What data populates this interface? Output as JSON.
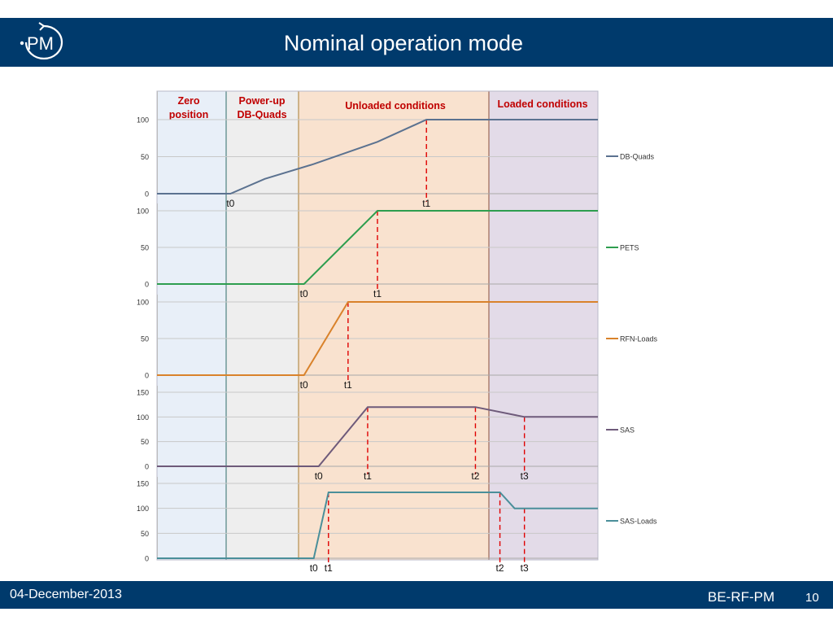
{
  "slide": {
    "title": "Nominal operation mode",
    "date": "04-December-2013",
    "group": "BE-RF-PM",
    "page": "10",
    "logo_text": "PM",
    "header_color": "#003a6c"
  },
  "chart_data": {
    "type": "line",
    "title": "",
    "phases": [
      {
        "name": "zero",
        "label": [
          "Zero",
          "position"
        ],
        "color": "#e8eff8"
      },
      {
        "name": "powerup",
        "label": [
          "Power-up",
          "DB-Quads"
        ],
        "color": "#eeeeee"
      },
      {
        "name": "unloaded",
        "label": [
          "Unloaded conditions"
        ],
        "color": "#f9e2cf"
      },
      {
        "name": "loaded",
        "label": [
          "Loaded conditions"
        ],
        "color": "#e3dbe8"
      }
    ],
    "phase_label_color": "#c00000",
    "marker_color": "#e00000",
    "charts": [
      {
        "legend": "DB-Quads",
        "color": "#5b7290",
        "ylim": [
          0,
          100
        ],
        "yticks": [
          "0",
          "50",
          "100"
        ],
        "points": [
          [
            0,
            0
          ],
          [
            1.5,
            0
          ],
          [
            2.2,
            20
          ],
          [
            3.2,
            40
          ],
          [
            4.5,
            70
          ],
          [
            5.5,
            100
          ],
          [
            9.0,
            100
          ]
        ],
        "markers": [
          {
            "label": "t0",
            "x": 1.5,
            "dashed": false
          },
          {
            "label": "t1",
            "x": 5.5,
            "dashed": true
          }
        ]
      },
      {
        "legend": "PETS",
        "color": "#2e9e4f",
        "ylim": [
          0,
          100
        ],
        "yticks": [
          "0",
          "50",
          "100"
        ],
        "points": [
          [
            0,
            0
          ],
          [
            3.0,
            0
          ],
          [
            4.5,
            100
          ],
          [
            9.0,
            100
          ]
        ],
        "markers": [
          {
            "label": "t0",
            "x": 3.0,
            "dashed": false
          },
          {
            "label": "t1",
            "x": 4.5,
            "dashed": true
          }
        ]
      },
      {
        "legend": "RFN-Loads",
        "color": "#d9822b",
        "ylim": [
          0,
          100
        ],
        "yticks": [
          "0",
          "50",
          "100"
        ],
        "points": [
          [
            0,
            0
          ],
          [
            3.0,
            0
          ],
          [
            3.9,
            100
          ],
          [
            9.0,
            100
          ]
        ],
        "markers": [
          {
            "label": "t0",
            "x": 3.0,
            "dashed": false
          },
          {
            "label": "t1",
            "x": 3.9,
            "dashed": true
          }
        ]
      },
      {
        "legend": "SAS",
        "color": "#6e5a7a",
        "ylim": [
          0,
          150
        ],
        "yticks": [
          "0",
          "50",
          "100",
          "150"
        ],
        "points": [
          [
            0,
            0
          ],
          [
            3.3,
            0
          ],
          [
            4.3,
            120
          ],
          [
            6.5,
            120
          ],
          [
            7.5,
            100
          ],
          [
            9.0,
            100
          ]
        ],
        "markers": [
          {
            "label": "t0",
            "x": 3.3,
            "dashed": false
          },
          {
            "label": "t1",
            "x": 4.3,
            "dashed": true
          },
          {
            "label": "t2",
            "x": 6.5,
            "dashed": true
          },
          {
            "label": "t3",
            "x": 7.5,
            "dashed": true
          }
        ]
      },
      {
        "legend": "SAS-Loads",
        "color": "#4a8f9a",
        "ylim": [
          0,
          150
        ],
        "yticks": [
          "0",
          "50",
          "100",
          "150"
        ],
        "points": [
          [
            0,
            0
          ],
          [
            3.2,
            0
          ],
          [
            3.5,
            132
          ],
          [
            7.0,
            132
          ],
          [
            7.3,
            100
          ],
          [
            9.0,
            100
          ]
        ],
        "markers": [
          {
            "label": "t0",
            "x": 3.2,
            "dashed": false
          },
          {
            "label": "t1",
            "x": 3.5,
            "dashed": true
          },
          {
            "label": "t2",
            "x": 7.0,
            "dashed": true
          },
          {
            "label": "t3",
            "x": 7.5,
            "dashed": true
          }
        ]
      }
    ]
  }
}
